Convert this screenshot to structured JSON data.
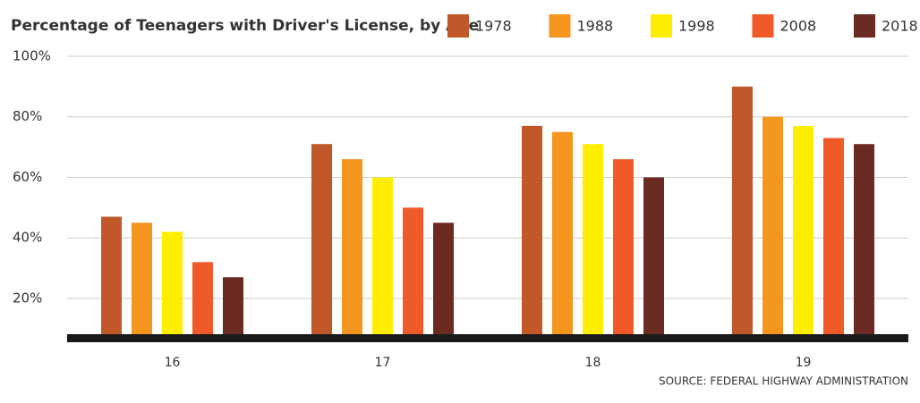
{
  "chart_data": {
    "type": "bar",
    "title": "Percentage of Teenagers with Driver's License, by Age",
    "source": "SOURCE: FEDERAL HIGHWAY ADMINISTRATION",
    "categories": [
      "16",
      "17",
      "18",
      "19"
    ],
    "series": [
      {
        "name": "1978",
        "color": "#c0582a",
        "values": [
          47,
          71,
          77,
          90
        ]
      },
      {
        "name": "1988",
        "color": "#f5961e",
        "values": [
          45,
          66,
          75,
          80
        ]
      },
      {
        "name": "1998",
        "color": "#ffee00",
        "values": [
          42,
          60,
          71,
          77
        ]
      },
      {
        "name": "2008",
        "color": "#f05a28",
        "values": [
          32,
          50,
          66,
          73
        ]
      },
      {
        "name": "2018",
        "color": "#6b2a22",
        "values": [
          27,
          45,
          60,
          71
        ]
      }
    ],
    "ylim": [
      7,
      100
    ],
    "yticks": [
      {
        "value": 20,
        "label": "20%"
      },
      {
        "value": 40,
        "label": "40%"
      },
      {
        "value": 60,
        "label": "60%"
      },
      {
        "value": 80,
        "label": "80%"
      },
      {
        "value": 100,
        "label": "100%"
      }
    ],
    "grid": true
  }
}
